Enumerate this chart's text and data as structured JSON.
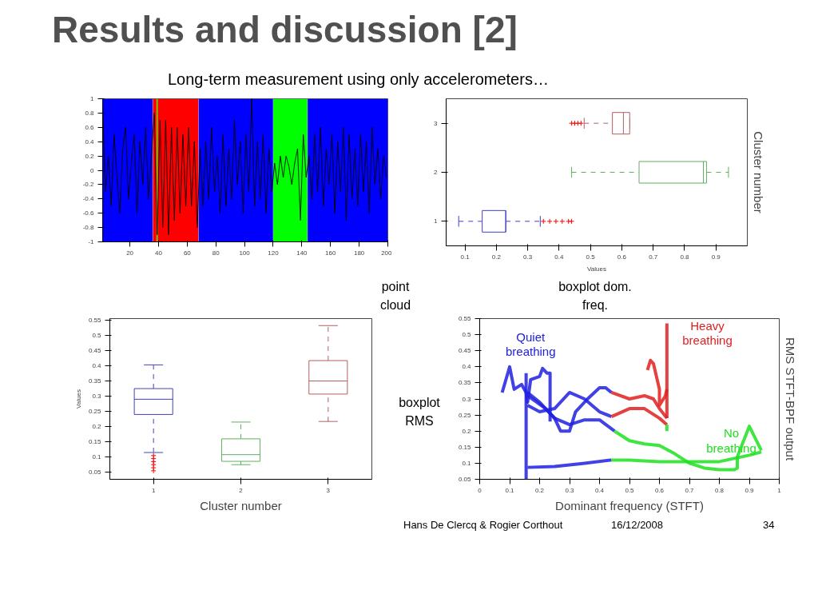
{
  "chart_data": [
    {
      "type": "other",
      "title": "Results and discussion [2]",
      "subtitle": "Long-term measurement using only accelerometers…",
      "annotations": [
        "point cloud",
        "boxplot dom. freq.",
        "boxplot RMS",
        "Hans De Clercq & Rogier Corthout",
        "16/12/2008",
        "34"
      ]
    },
    {
      "type": "line",
      "x": [
        1,
        3,
        5,
        7,
        9,
        11,
        13,
        15,
        17,
        19,
        21,
        23,
        25,
        27,
        29,
        31,
        33,
        35,
        37,
        39,
        41,
        43,
        45,
        47,
        49,
        51,
        53,
        55,
        57,
        59,
        61,
        63,
        65,
        67,
        69,
        71,
        73,
        75,
        77,
        79,
        81,
        83,
        85,
        87,
        89,
        91,
        93,
        95,
        97,
        99,
        101,
        103,
        105,
        107,
        109,
        111,
        113,
        115,
        117,
        119,
        121,
        123,
        125,
        127,
        129,
        131,
        133,
        135,
        137,
        139,
        141,
        143,
        145,
        147,
        149,
        151,
        153,
        155,
        157,
        159,
        161,
        163,
        165,
        167,
        169,
        171,
        173,
        175,
        177,
        179,
        181,
        183,
        185,
        187,
        189,
        191,
        193,
        195,
        197,
        199
      ],
      "values": [
        0.9,
        -0.3,
        0.2,
        -0.5,
        0.5,
        -0.1,
        -0.6,
        0.3,
        0.6,
        -0.4,
        0.1,
        0.5,
        -0.6,
        0.4,
        -0.2,
        0.6,
        -0.4,
        0.2,
        0.8,
        -0.9,
        0.7,
        -0.8,
        0.7,
        -0.9,
        0.6,
        -0.7,
        0.6,
        -0.6,
        0.5,
        -0.5,
        0.6,
        -0.5,
        0.4,
        -0.8,
        0.3,
        -0.5,
        0.4,
        -0.4,
        0.6,
        -0.3,
        0.2,
        -0.6,
        0.5,
        -0.5,
        0.3,
        -0.4,
        0.7,
        -0.2,
        0.4,
        -0.6,
        0.5,
        -0.3,
        1.0,
        -0.5,
        0.4,
        -0.4,
        0.5,
        -0.6,
        0.3,
        -0.3,
        0.1,
        -0.2,
        0.2,
        -0.1,
        0.2,
        0.05,
        -0.2,
        0.1,
        0.3,
        -0.7,
        0.5,
        -0.1,
        0.2,
        -0.4,
        0.5,
        -0.3,
        0.6,
        -0.5,
        0.3,
        -0.2,
        0.5,
        -0.6,
        0.4,
        -0.3,
        0.6,
        -0.7,
        0.5,
        -0.4,
        0.3,
        -0.5,
        0.5,
        -0.3,
        0.4,
        -0.6,
        0.6,
        -0.2,
        0.3,
        -0.4,
        0.2,
        -0.1
      ],
      "color": "#000000",
      "xlim": [
        1,
        200
      ],
      "ylim": [
        -1,
        1
      ],
      "xticks": [
        20,
        40,
        60,
        80,
        100,
        120,
        140,
        160,
        180,
        200
      ],
      "yticks": [
        -1,
        -0.8,
        -0.6,
        -0.4,
        -0.2,
        0,
        0.2,
        0.4,
        0.6,
        0.8,
        1
      ],
      "bands": [
        {
          "axis": "x",
          "from": 1,
          "to": 36,
          "color": "#0000ff"
        },
        {
          "axis": "x",
          "from": 36,
          "to": 68,
          "color": "#ff0000"
        },
        {
          "axis": "x",
          "from": 68,
          "to": 120,
          "color": "#0000ff"
        },
        {
          "axis": "x",
          "from": 120,
          "to": 144,
          "color": "#00ff00"
        },
        {
          "axis": "x",
          "from": 144,
          "to": 200,
          "color": "#0000ff"
        }
      ],
      "ref_lines": [
        {
          "axis": "x",
          "value": 39,
          "color": "#80c000"
        }
      ]
    },
    {
      "type": "box",
      "orientation": "horizontal",
      "categories": [
        "3",
        "2",
        "1"
      ],
      "xlabel": "Values",
      "ylabel": "Cluster number",
      "xlim": [
        0.04,
        1.0
      ],
      "xticks": [
        0.1,
        0.2,
        0.3,
        0.4,
        0.5,
        0.6,
        0.7,
        0.8,
        0.9
      ],
      "line_style": "dashed",
      "marker": "cross",
      "colors": [
        "#b06060",
        "#60b060",
        "#4040c0"
      ],
      "boxes": [
        {
          "low": 0.48,
          "q1": 0.57,
          "median": 0.605,
          "q3": 0.625,
          "high": 0.625,
          "outliers": [
            0.44,
            0.45,
            0.46,
            0.47
          ]
        },
        {
          "low": 0.44,
          "q1": 0.655,
          "median": 0.86,
          "q3": 0.87,
          "high": 0.94
        },
        {
          "low": 0.08,
          "q1": 0.155,
          "median": 0.23,
          "q3": 0.23,
          "high": 0.34,
          "outliers": [
            0.35,
            0.37,
            0.39,
            0.41,
            0.43,
            0.44
          ]
        }
      ]
    },
    {
      "type": "box",
      "categories": [
        "1",
        "2",
        "3"
      ],
      "xlabel": "Cluster number",
      "ylabel": "Values",
      "ylim": [
        0.027,
        0.555
      ],
      "yticks": [
        0.05,
        0.1,
        0.15,
        0.2,
        0.25,
        0.3,
        0.35,
        0.4,
        0.45,
        0.5,
        0.55
      ],
      "line_style": "dashed",
      "marker": "cross",
      "colors": [
        "#4040c0",
        "#60b060",
        "#b06060"
      ],
      "boxes": [
        {
          "low": 0.115,
          "q1": 0.24,
          "median": 0.29,
          "q3": 0.325,
          "high": 0.403,
          "outliers": [
            0.055,
            0.065,
            0.075,
            0.085,
            0.095,
            0.105
          ]
        },
        {
          "low": 0.075,
          "q1": 0.086,
          "median": 0.108,
          "q3": 0.16,
          "high": 0.215
        },
        {
          "low": 0.217,
          "q1": 0.307,
          "median": 0.35,
          "q3": 0.417,
          "high": 0.532
        }
      ]
    },
    {
      "type": "line",
      "xlabel": "Dominant frequency (STFT)",
      "ylabel": "RMS STFT-BPF output",
      "xlim": [
        0,
        1
      ],
      "ylim": [
        0.05,
        0.55
      ],
      "xticks": [
        0,
        0.1,
        0.2,
        0.3,
        0.4,
        0.5,
        0.6,
        0.7,
        0.8,
        0.9,
        1
      ],
      "yticks": [
        0.05,
        0.1,
        0.15,
        0.2,
        0.25,
        0.3,
        0.35,
        0.4,
        0.45,
        0.5,
        0.55
      ],
      "series": [
        {
          "name": "Quiet breathing",
          "color": "#2020e0",
          "x": [
            0.075,
            0.1,
            0.115,
            0.14,
            0.155,
            0.16,
            0.17,
            0.2,
            0.21,
            0.225,
            0.235,
            0.235
          ],
          "values": [
            0.32,
            0.4,
            0.33,
            0.345,
            0.32,
            0.29,
            0.36,
            0.37,
            0.395,
            0.38,
            0.38,
            0.23
          ]
        },
        {
          "color": "#2020e0",
          "x": [
            0.155,
            0.155
          ],
          "values": [
            0.05,
            0.38
          ]
        },
        {
          "color": "#2020e0",
          "x": [
            0.16,
            0.2,
            0.25,
            0.3,
            0.35,
            0.4,
            0.45
          ],
          "values": [
            0.32,
            0.29,
            0.24,
            0.22,
            0.235,
            0.235,
            0.2
          ]
        },
        {
          "name": "No breathing",
          "color": "#20e020",
          "x": [
            0.45,
            0.5,
            0.55,
            0.6,
            0.65,
            0.7,
            0.75,
            0.8,
            0.85,
            0.86,
            0.86,
            0.9,
            0.94
          ],
          "values": [
            0.2,
            0.17,
            0.16,
            0.155,
            0.13,
            0.1,
            0.085,
            0.08,
            0.08,
            0.085,
            0.12,
            0.215,
            0.14
          ]
        },
        {
          "color": "#2020e0",
          "x": [
            0.16,
            0.2,
            0.25,
            0.3,
            0.35,
            0.4,
            0.44
          ],
          "values": [
            0.28,
            0.26,
            0.27,
            0.32,
            0.3,
            0.26,
            0.245
          ]
        },
        {
          "color": "#e02020",
          "x": [
            0.44,
            0.5,
            0.55,
            0.6,
            0.625
          ],
          "values": [
            0.245,
            0.27,
            0.27,
            0.24,
            0.22
          ]
        },
        {
          "color": "#20e020",
          "x": [
            0.625,
            0.625
          ],
          "values": [
            0.22,
            0.2
          ]
        },
        {
          "color": "#2020e0",
          "x": [
            0.16,
            0.22,
            0.25,
            0.27,
            0.3,
            0.32,
            0.36,
            0.4,
            0.42,
            0.44
          ],
          "values": [
            0.31,
            0.27,
            0.24,
            0.2,
            0.2,
            0.26,
            0.3,
            0.335,
            0.335,
            0.32
          ]
        },
        {
          "color": "#e02020",
          "x": [
            0.44,
            0.5,
            0.55,
            0.58,
            0.6,
            0.625
          ],
          "values": [
            0.32,
            0.3,
            0.31,
            0.3,
            0.27,
            0.24
          ]
        },
        {
          "color": "#e02020",
          "x": [
            0.56,
            0.57,
            0.58,
            0.59,
            0.6,
            0.6,
            0.62,
            0.625
          ],
          "values": [
            0.39,
            0.42,
            0.41,
            0.37,
            0.33,
            0.28,
            0.31,
            0.33
          ]
        },
        {
          "name": "Heavy breathing",
          "color": "#e02020",
          "x": [
            0.625,
            0.625
          ],
          "values": [
            0.24,
            0.535
          ]
        },
        {
          "color": "#2020e0",
          "x": [
            0.16,
            0.25,
            0.35,
            0.44
          ],
          "values": [
            0.087,
            0.09,
            0.1,
            0.11
          ]
        },
        {
          "color": "#20e020",
          "x": [
            0.44,
            0.5,
            0.6,
            0.7,
            0.8,
            0.9,
            0.94
          ],
          "values": [
            0.11,
            0.11,
            0.105,
            0.105,
            0.105,
            0.125,
            0.135
          ]
        }
      ]
    }
  ]
}
